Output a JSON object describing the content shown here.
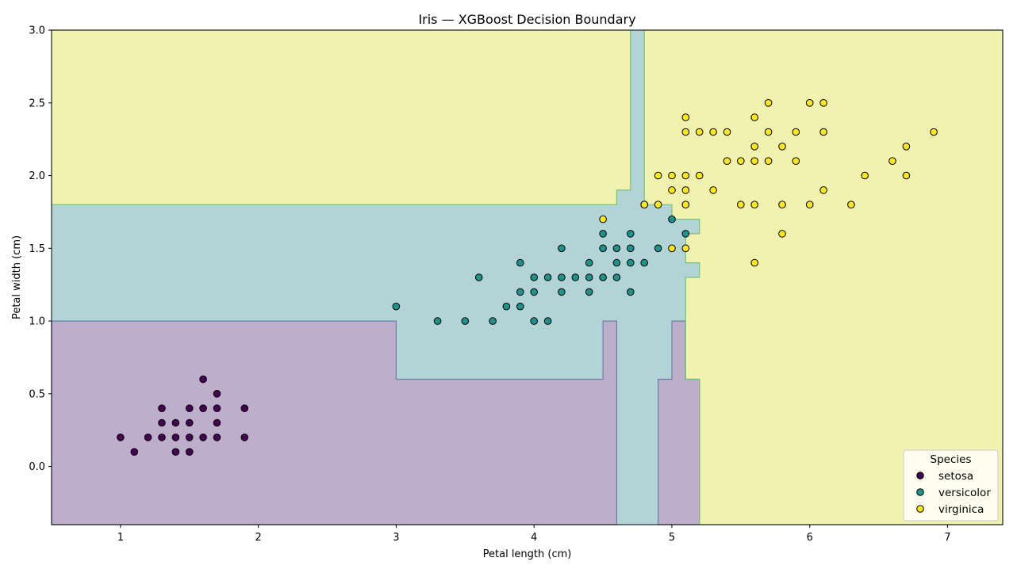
{
  "chart_data": {
    "type": "scatter",
    "title": "Iris — XGBoost Decision Boundary",
    "xlabel": "Petal length (cm)",
    "ylabel": "Petal width (cm)",
    "xlim": [
      0.5,
      7.4
    ],
    "ylim": [
      -0.4,
      3.0
    ],
    "xticks": [
      1,
      2,
      3,
      4,
      5,
      6,
      7
    ],
    "yticks": [
      0.0,
      0.5,
      1.0,
      1.5,
      2.0,
      2.5,
      3.0
    ],
    "grid": false,
    "legend": {
      "title": "Species",
      "placement": "bottom-right"
    },
    "region_colors": {
      "setosa": "#bfaecb",
      "versicolor": "#b3d4d6",
      "virginica": "#f2f2b0"
    },
    "boundary_colors": {
      "setosa_versicolor": "#6a7fa6",
      "versicolor_virginica": "#74c37c"
    },
    "decision_regions": [
      {
        "class": "setosa",
        "points": [
          [
            0.5,
            -0.4
          ],
          [
            4.6,
            -0.4
          ],
          [
            4.6,
            1.0
          ],
          [
            4.5,
            1.0
          ],
          [
            4.5,
            0.6
          ],
          [
            3.0,
            0.6
          ],
          [
            3.0,
            1.0
          ],
          [
            0.5,
            1.0
          ]
        ]
      },
      {
        "class": "setosa",
        "points": [
          [
            4.9,
            -0.4
          ],
          [
            5.2,
            -0.4
          ],
          [
            5.2,
            0.6
          ],
          [
            5.1,
            0.6
          ],
          [
            5.1,
            1.0
          ],
          [
            5.0,
            1.0
          ],
          [
            5.0,
            0.6
          ],
          [
            4.9,
            0.6
          ]
        ]
      },
      {
        "class": "virginica",
        "points": [
          [
            0.5,
            1.8
          ],
          [
            4.6,
            1.8
          ],
          [
            4.6,
            1.9
          ],
          [
            4.7,
            1.9
          ],
          [
            4.7,
            3.0
          ],
          [
            0.5,
            3.0
          ]
        ]
      },
      {
        "class": "virginica",
        "points": [
          [
            4.8,
            3.0
          ],
          [
            7.4,
            3.0
          ],
          [
            7.4,
            -0.4
          ],
          [
            5.2,
            -0.4
          ],
          [
            5.2,
            0.6
          ],
          [
            5.1,
            0.6
          ],
          [
            5.1,
            1.3
          ],
          [
            5.2,
            1.3
          ],
          [
            5.2,
            1.4
          ],
          [
            5.1,
            1.4
          ],
          [
            5.1,
            1.6
          ],
          [
            5.2,
            1.6
          ],
          [
            5.2,
            1.7
          ],
          [
            5.0,
            1.7
          ],
          [
            5.0,
            1.8
          ],
          [
            4.8,
            1.8
          ]
        ]
      }
    ],
    "series": [
      {
        "name": "setosa",
        "color": "#440154",
        "points": [
          [
            1.0,
            0.2
          ],
          [
            1.1,
            0.1
          ],
          [
            1.2,
            0.2
          ],
          [
            1.3,
            0.2
          ],
          [
            1.3,
            0.3
          ],
          [
            1.3,
            0.4
          ],
          [
            1.4,
            0.1
          ],
          [
            1.4,
            0.2
          ],
          [
            1.4,
            0.3
          ],
          [
            1.5,
            0.1
          ],
          [
            1.5,
            0.2
          ],
          [
            1.5,
            0.3
          ],
          [
            1.5,
            0.4
          ],
          [
            1.6,
            0.2
          ],
          [
            1.6,
            0.4
          ],
          [
            1.6,
            0.6
          ],
          [
            1.7,
            0.2
          ],
          [
            1.7,
            0.3
          ],
          [
            1.7,
            0.4
          ],
          [
            1.7,
            0.5
          ],
          [
            1.9,
            0.2
          ],
          [
            1.9,
            0.4
          ]
        ]
      },
      {
        "name": "versicolor",
        "color": "#21918c",
        "points": [
          [
            3.0,
            1.1
          ],
          [
            3.3,
            1.0
          ],
          [
            3.5,
            1.0
          ],
          [
            3.6,
            1.3
          ],
          [
            3.7,
            1.0
          ],
          [
            3.8,
            1.1
          ],
          [
            3.9,
            1.1
          ],
          [
            3.9,
            1.2
          ],
          [
            3.9,
            1.4
          ],
          [
            4.0,
            1.0
          ],
          [
            4.0,
            1.2
          ],
          [
            4.0,
            1.3
          ],
          [
            4.1,
            1.0
          ],
          [
            4.1,
            1.3
          ],
          [
            4.2,
            1.2
          ],
          [
            4.2,
            1.3
          ],
          [
            4.2,
            1.5
          ],
          [
            4.3,
            1.3
          ],
          [
            4.4,
            1.2
          ],
          [
            4.4,
            1.3
          ],
          [
            4.4,
            1.4
          ],
          [
            4.5,
            1.3
          ],
          [
            4.5,
            1.5
          ],
          [
            4.5,
            1.6
          ],
          [
            4.6,
            1.3
          ],
          [
            4.6,
            1.4
          ],
          [
            4.6,
            1.5
          ],
          [
            4.7,
            1.2
          ],
          [
            4.7,
            1.4
          ],
          [
            4.7,
            1.5
          ],
          [
            4.7,
            1.6
          ],
          [
            4.8,
            1.4
          ],
          [
            4.8,
            1.8
          ],
          [
            4.9,
            1.5
          ],
          [
            5.0,
            1.7
          ],
          [
            5.1,
            1.6
          ]
        ]
      },
      {
        "name": "virginica",
        "color": "#fde725",
        "points": [
          [
            4.5,
            1.7
          ],
          [
            4.8,
            1.8
          ],
          [
            4.9,
            1.8
          ],
          [
            4.9,
            2.0
          ],
          [
            5.0,
            1.5
          ],
          [
            5.0,
            1.9
          ],
          [
            5.0,
            2.0
          ],
          [
            5.1,
            1.5
          ],
          [
            5.1,
            1.8
          ],
          [
            5.1,
            1.9
          ],
          [
            5.1,
            2.0
          ],
          [
            5.1,
            2.3
          ],
          [
            5.1,
            2.4
          ],
          [
            5.2,
            2.0
          ],
          [
            5.2,
            2.3
          ],
          [
            5.3,
            1.9
          ],
          [
            5.3,
            2.3
          ],
          [
            5.4,
            2.1
          ],
          [
            5.4,
            2.3
          ],
          [
            5.5,
            1.8
          ],
          [
            5.5,
            2.1
          ],
          [
            5.6,
            1.4
          ],
          [
            5.6,
            1.8
          ],
          [
            5.6,
            2.1
          ],
          [
            5.6,
            2.2
          ],
          [
            5.6,
            2.4
          ],
          [
            5.7,
            2.1
          ],
          [
            5.7,
            2.3
          ],
          [
            5.7,
            2.5
          ],
          [
            5.8,
            1.6
          ],
          [
            5.8,
            1.8
          ],
          [
            5.8,
            2.2
          ],
          [
            5.9,
            2.1
          ],
          [
            5.9,
            2.3
          ],
          [
            6.0,
            1.8
          ],
          [
            6.0,
            2.5
          ],
          [
            6.1,
            1.9
          ],
          [
            6.1,
            2.3
          ],
          [
            6.1,
            2.5
          ],
          [
            6.3,
            1.8
          ],
          [
            6.4,
            2.0
          ],
          [
            6.6,
            2.1
          ],
          [
            6.7,
            2.0
          ],
          [
            6.7,
            2.2
          ],
          [
            6.9,
            2.3
          ]
        ]
      }
    ]
  }
}
